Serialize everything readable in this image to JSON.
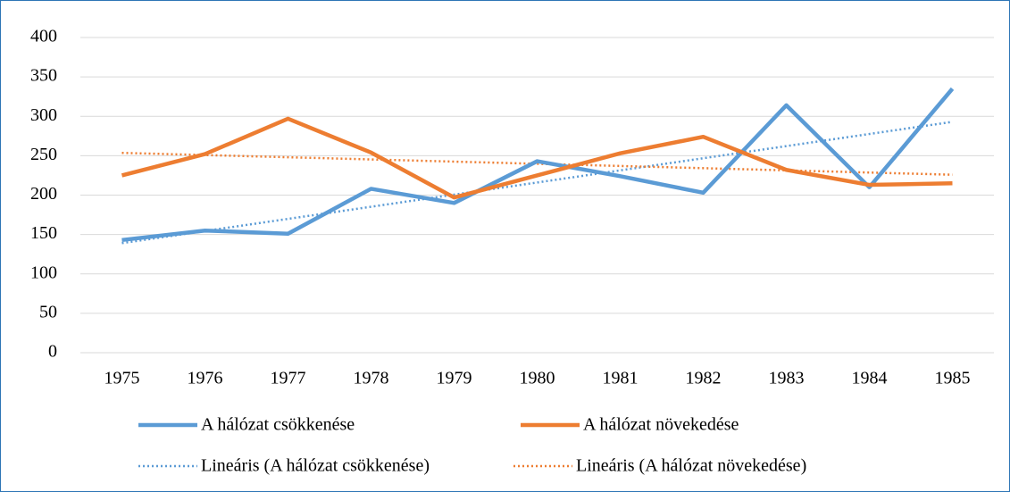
{
  "chart_data": {
    "type": "line",
    "categories": [
      "1975",
      "1976",
      "1977",
      "1978",
      "1979",
      "1980",
      "1981",
      "1982",
      "1983",
      "1984",
      "1985"
    ],
    "series": [
      {
        "name": "A hálózat csökkenése",
        "color": "#5b9bd5",
        "values": [
          143,
          155,
          151,
          208,
          190,
          243,
          224,
          203,
          314,
          210,
          335
        ],
        "trendline": {
          "type": "linear",
          "name": "Lineáris (A hálózat csökkenése)"
        }
      },
      {
        "name": "A hálózat növekedése",
        "color": "#ed7d31",
        "values": [
          225,
          252,
          297,
          254,
          197,
          225,
          253,
          274,
          232,
          213,
          215
        ],
        "trendline": {
          "type": "linear",
          "name": "Lineáris (A hálózat növekedése)"
        }
      }
    ],
    "ylim": [
      0,
      400
    ],
    "yticks": [
      0,
      50,
      100,
      150,
      200,
      250,
      300,
      350,
      400
    ],
    "grid": true
  }
}
